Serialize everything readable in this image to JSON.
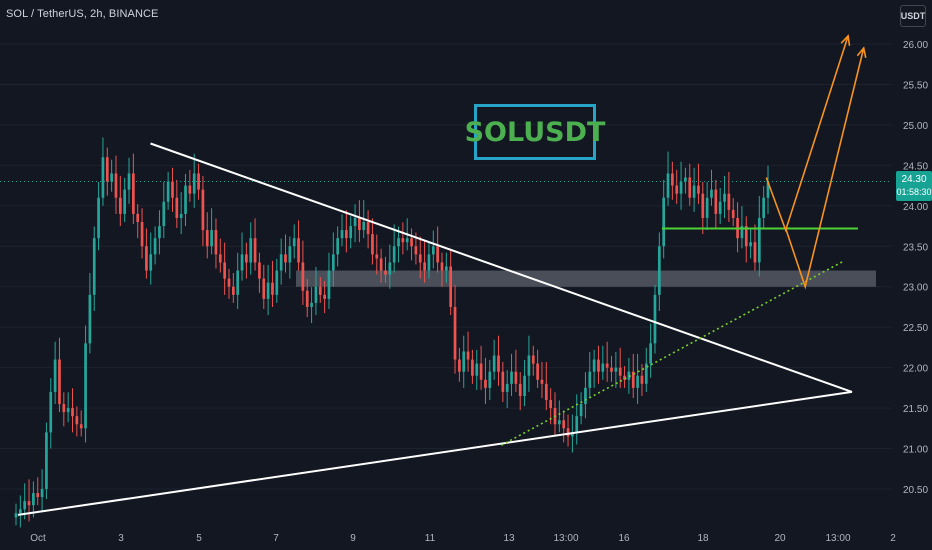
{
  "header": {
    "symbol_info": "SOL / TetherUS, 2h, BINANCE"
  },
  "toolbar": {
    "unit_button": "USDT"
  },
  "annotation": {
    "title": "SOLUSDT"
  },
  "price_badge": {
    "price": "24.30",
    "countdown": "01:58:30"
  },
  "colors": {
    "background": "#131722",
    "up_candle": "#26a69a",
    "down_candle": "#ef5350",
    "triangle_lines": "#ffffff",
    "support_zone": "#787b86",
    "support_line": "#4cd137",
    "trendline_dotted": "#7bd12e",
    "projection_arrows": "#f7931e",
    "title_border": "#26a5c8",
    "title_text": "#4caf50"
  },
  "chart_data": {
    "type": "candlestick",
    "title": "SOL / TetherUS, 2h, BINANCE",
    "xlabel": "",
    "ylabel": "",
    "ylim": [
      20.2,
      26.2
    ],
    "y_ticks": [
      "26.00",
      "25.50",
      "25.00",
      "24.50",
      "24.00",
      "23.50",
      "23.00",
      "22.50",
      "22.00",
      "21.50",
      "21.00",
      "20.50"
    ],
    "x_ticks": [
      "Oct",
      "3",
      "5",
      "7",
      "9",
      "11",
      "13",
      "13:00",
      "16",
      "18",
      "20",
      "13:00",
      "2"
    ],
    "x_tick_index": [
      0,
      20,
      40,
      60,
      80,
      100,
      120,
      130,
      144,
      164,
      184,
      198,
      212
    ],
    "last_price": 24.3,
    "candles_close": [
      20.2,
      20.25,
      20.35,
      20.3,
      20.45,
      20.4,
      20.5,
      21.2,
      21.7,
      22.1,
      21.55,
      21.45,
      21.5,
      21.4,
      21.3,
      21.25,
      22.3,
      22.9,
      23.6,
      24.1,
      24.6,
      24.3,
      24.4,
      24.1,
      23.9,
      24.2,
      24.4,
      23.9,
      23.8,
      23.5,
      23.2,
      23.4,
      23.6,
      23.75,
      24.05,
      24.3,
      24.1,
      23.85,
      23.9,
      24.25,
      24.15,
      24.4,
      24.2,
      23.7,
      23.5,
      23.7,
      23.4,
      23.3,
      23.1,
      23.0,
      22.9,
      23.2,
      23.4,
      23.3,
      23.6,
      23.3,
      23.1,
      22.85,
      23.05,
      22.9,
      23.2,
      23.4,
      23.3,
      23.5,
      23.6,
      23.3,
      22.95,
      22.75,
      22.8,
      23.0,
      22.9,
      22.85,
      23.2,
      23.4,
      23.6,
      23.7,
      23.6,
      23.75,
      23.85,
      23.7,
      23.8,
      23.65,
      23.4,
      23.35,
      23.2,
      23.15,
      23.3,
      23.5,
      23.6,
      23.55,
      23.6,
      23.5,
      23.4,
      23.3,
      23.2,
      23.4,
      23.5,
      23.3,
      23.2,
      23.25,
      22.75,
      22.1,
      21.95,
      22.2,
      22.1,
      21.9,
      22.05,
      21.85,
      21.75,
      21.95,
      22.15,
      21.95,
      21.7,
      21.8,
      21.95,
      21.8,
      21.65,
      21.9,
      22.15,
      22.05,
      21.85,
      21.8,
      21.6,
      21.5,
      21.3,
      21.35,
      21.25,
      21.15,
      21.2,
      21.4,
      21.55,
      21.75,
      21.95,
      22.1,
      21.95,
      22.05,
      22.0,
      21.95,
      22.0,
      21.9,
      21.85,
      21.95,
      21.75,
      21.9,
      21.8,
      22.05,
      22.3,
      22.9,
      23.5,
      24.1,
      24.4,
      24.25,
      24.15,
      24.3,
      24.35,
      24.1,
      24.25,
      24.15,
      23.85,
      24.1,
      24.2,
      23.9,
      24.05,
      24.15,
      23.95,
      23.85,
      23.6,
      23.75,
      23.5,
      23.55,
      23.3,
      23.85,
      24.1,
      24.3
    ]
  },
  "drawings": {
    "support_zone": [
      23.0,
      23.2
    ],
    "support_line": 23.72,
    "triangle_upper": [
      [
        17,
        24.77
      ],
      [
        107,
        21.7
      ]
    ],
    "triangle_lower": [
      [
        0,
        20.18
      ],
      [
        107,
        21.7
      ]
    ],
    "dotted_trend": [
      [
        62,
        21.04
      ],
      [
        106,
        23.32
      ]
    ],
    "arrow_path_1": [
      [
        96,
        24.35
      ],
      [
        98.5,
        23.7
      ],
      [
        106.5,
        26.1
      ]
    ],
    "arrow_path_2": [
      [
        98.5,
        23.72
      ],
      [
        101,
        23.0
      ],
      [
        108.5,
        25.95
      ]
    ]
  }
}
